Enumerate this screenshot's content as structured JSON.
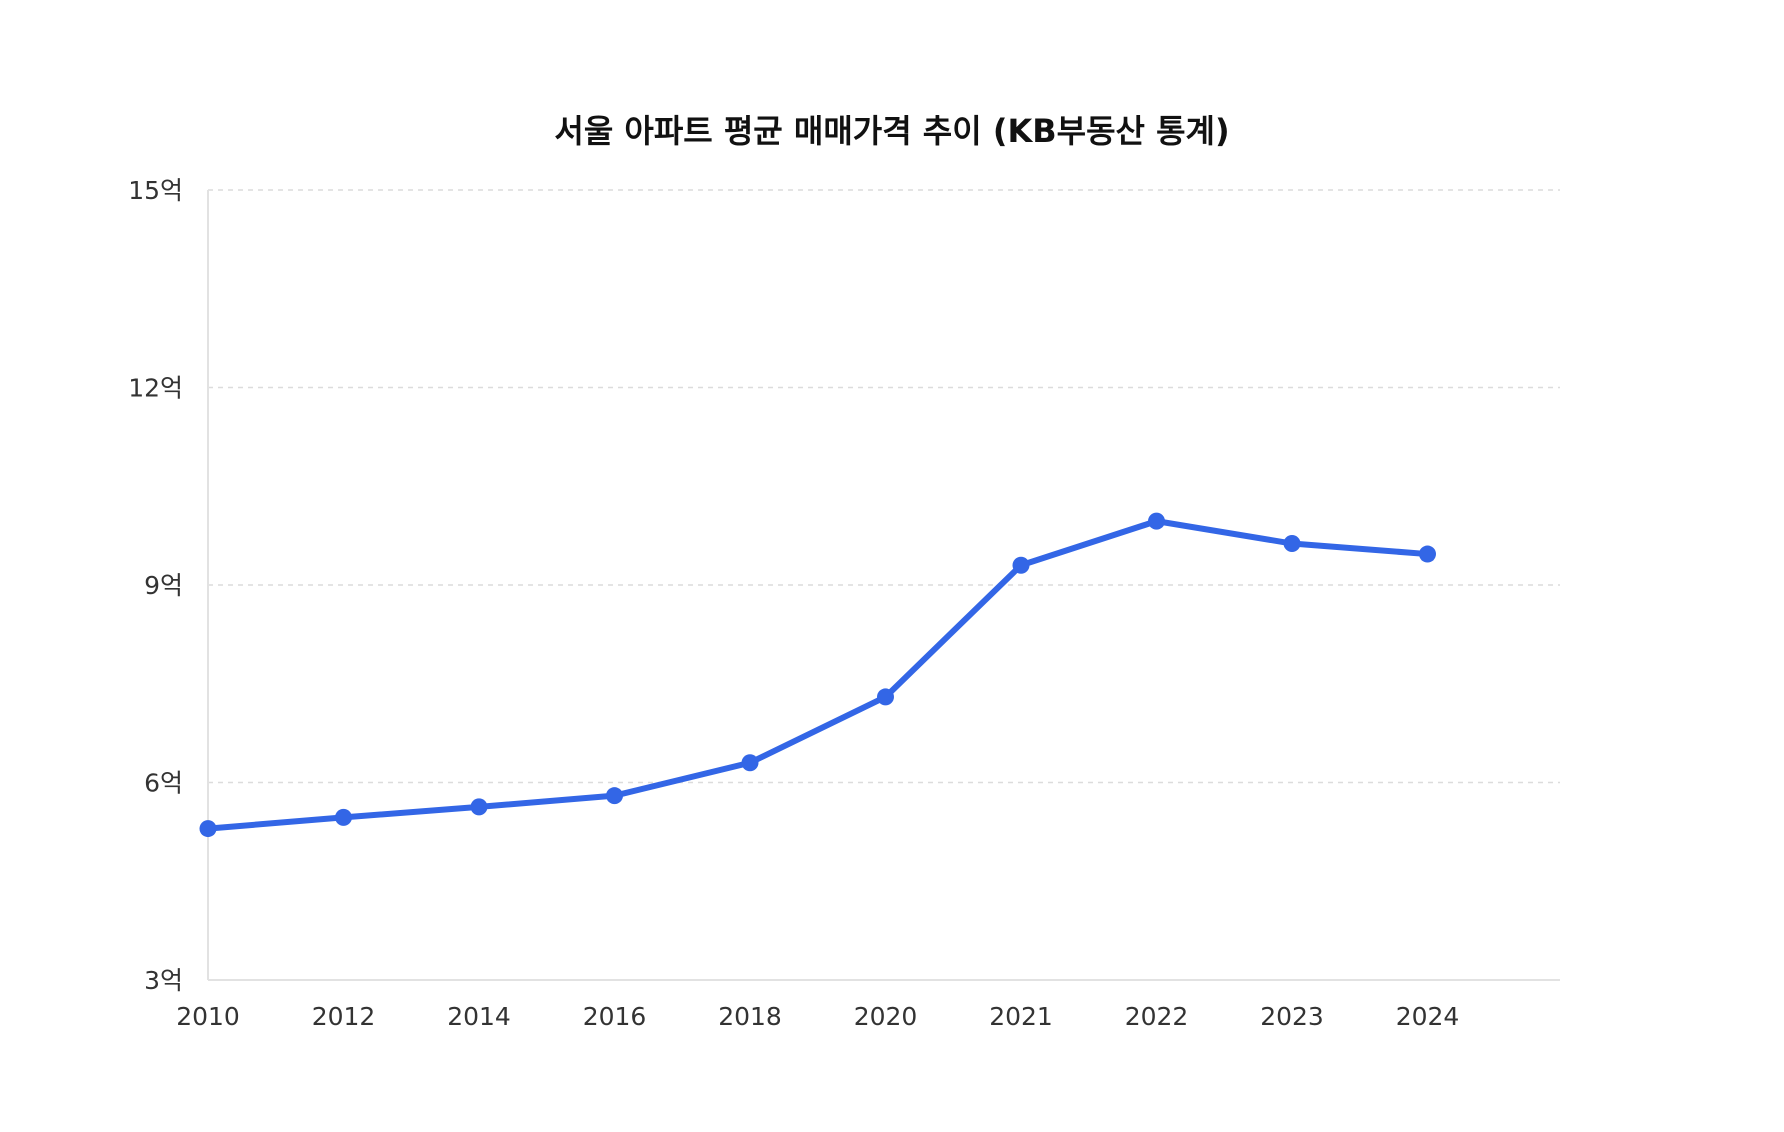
{
  "chart_data": {
    "type": "line",
    "title": "서울 아파트 평균 매매가격 추이 (KB부동산 통계)",
    "xlabel": "",
    "ylabel": "",
    "categories": [
      "2010",
      "2012",
      "2014",
      "2016",
      "2018",
      "2020",
      "2021",
      "2022",
      "2023",
      "2024"
    ],
    "series": [
      {
        "values": [
          5.3,
          5.47,
          5.63,
          5.8,
          6.3,
          7.3,
          9.3,
          9.97,
          9.63,
          9.47
        ]
      }
    ],
    "ylim": [
      3,
      15
    ],
    "yticks": [
      3,
      6,
      9,
      12,
      15
    ],
    "ytick_labels": [
      "3억",
      "6억",
      "9억",
      "12억",
      "15억"
    ],
    "grid": true,
    "legend": "none",
    "colors": {
      "line": "#3366e6",
      "grid": "#dcdcdc",
      "axis": "#e2e2e2"
    }
  }
}
